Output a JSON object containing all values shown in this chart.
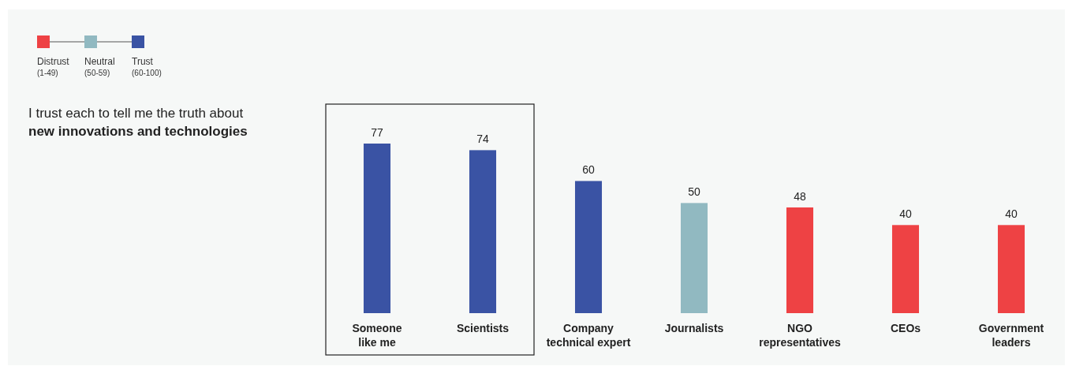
{
  "chart_data": {
    "type": "bar",
    "title": "I trust each to tell me the truth about",
    "subtitle": "new innovations and technologies",
    "categories": [
      "Someone like me",
      "Scientists",
      "Company technical expert",
      "Journalists",
      "NGO representatives",
      "CEOs",
      "Government leaders"
    ],
    "series": [
      {
        "name": "Distrust (1-49)",
        "color": "#ee4244",
        "values": [
          null,
          null,
          null,
          null,
          48,
          40,
          40
        ]
      },
      {
        "name": "Neutral (50-59)",
        "color": "#91b9c1",
        "values": [
          null,
          null,
          null,
          50,
          null,
          null,
          null
        ]
      },
      {
        "name": "Trust (60-100)",
        "color": "#3a53a4",
        "values": [
          77,
          74,
          60,
          null,
          null,
          null,
          null
        ]
      }
    ],
    "data_labels": true,
    "legend": "top left",
    "grid": false
  }
}
